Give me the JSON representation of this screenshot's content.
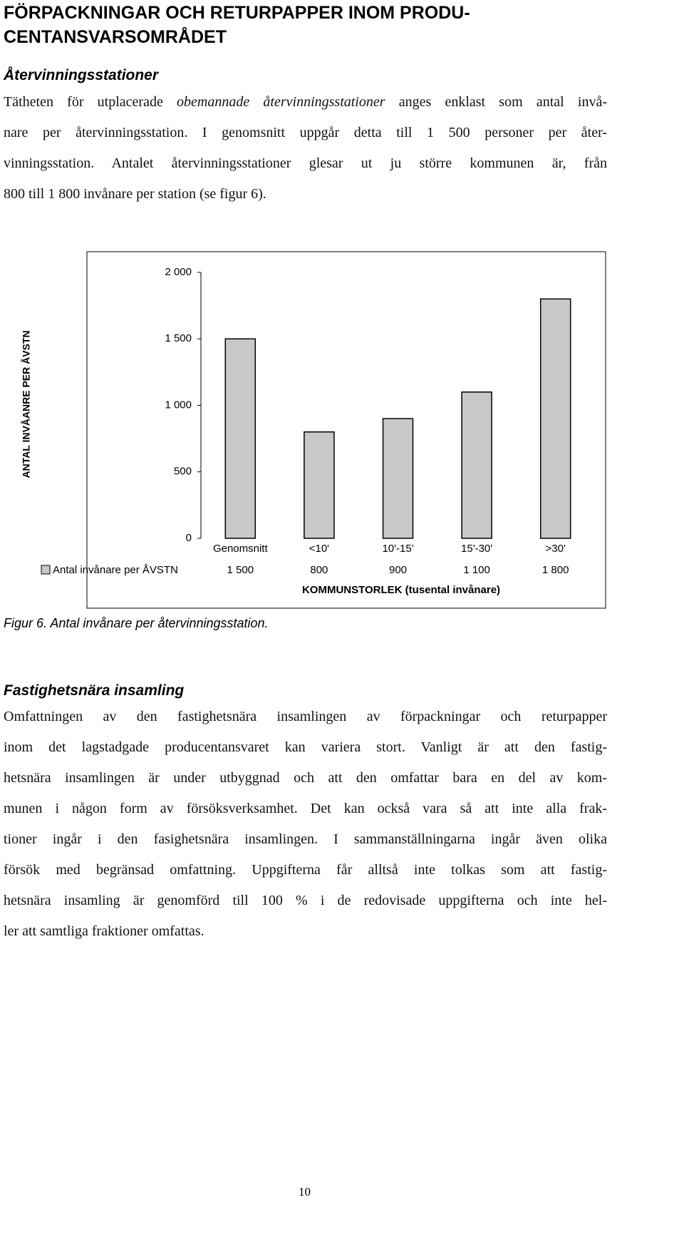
{
  "title": [
    "FÖRPACKNINGAR OCH RETURPAPPER INOM PRODU-",
    "CENTANSVARSOMRÅDET"
  ],
  "sections": [
    {
      "heading": "Återvinningsstationer",
      "first_line": [
        "Tätheten för utplacerade ",
        "obemannade återvinningsstationer",
        " anges enklast som antal invå-"
      ],
      "lines": [
        "nare per återvinningsstation. I genomsnitt uppgår detta till 1 500 personer per åter-",
        "vinningsstation. Antalet återvinningsstationer glesar ut ju större kommunen är, från",
        "800 till 1 800 invånare per station (se figur 6)."
      ]
    },
    {
      "heading": "Fastighetsnära insamling",
      "lines": [
        "Omfattningen av den fastighetsnära insamlingen av förpackningar och returpapper",
        "inom det lagstadgade producentansvaret kan variera stort. Vanligt är att den fastig-",
        "hetsnära insamlingen är under utbyggnad och att den omfattar bara en del av kom-",
        "munen i någon form av försöksverksamhet. Det kan också vara så att inte alla frak-",
        "tioner ingår i den fasighetsnära insamlingen. I sammanställningarna ingår även olika",
        "försök med begränsad omfattning. Uppgifterna får alltså inte tolkas som att fastig-",
        "hetsnära insamling är genomförd till 100 % i de redovisade uppgifterna och inte hel-",
        "ler att samtliga fraktioner omfattas."
      ]
    }
  ],
  "chart_data": {
    "type": "bar",
    "ylabel": "ANTAL INVÅANRE PER ÅVSTN",
    "xlabel": "KOMMUNSTORLEK (tusental invånare)",
    "categories": [
      "Genomsnitt",
      "<10'",
      "10'-15'",
      "15'-30'",
      ">30'"
    ],
    "series": [
      {
        "name": "Antal invånare per ÅVSTN",
        "color": "#c8c8c8",
        "values": [
          1500,
          800,
          900,
          1100,
          1800
        ],
        "value_labels": [
          "1 500",
          "800",
          "900",
          "1 100",
          "1 800"
        ]
      }
    ],
    "ylim": [
      0,
      2000
    ],
    "yticks": [
      0,
      500,
      {
        "value": 1000,
        "label": "1 000"
      },
      {
        "value": 1500,
        "label": "1 500"
      },
      {
        "value": 2000,
        "label": "2 000"
      }
    ],
    "grid": false
  },
  "caption": "Figur 6. Antal invånare per återvinningsstation.",
  "page_number": "10"
}
